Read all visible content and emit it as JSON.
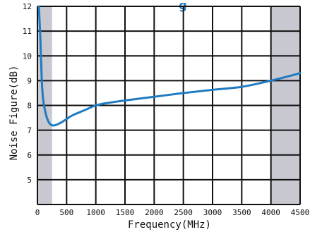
{
  "chart_data": {
    "type": "line",
    "title": "",
    "title_fragment": "g",
    "xlabel": "Frequency(MHz)",
    "ylabel": "Noise Figure(dB)",
    "xlim": [
      0,
      4500
    ],
    "ylim": [
      4,
      12
    ],
    "x_ticks": [
      0,
      500,
      1000,
      1500,
      2000,
      2500,
      3000,
      3500,
      4000,
      4500
    ],
    "y_ticks": [
      5,
      6,
      7,
      8,
      9,
      10,
      11,
      12
    ],
    "grid": true,
    "shaded_regions": [
      {
        "x_from": 0,
        "x_to": 250
      },
      {
        "x_from": 4000,
        "x_to": 4500
      }
    ],
    "series": [
      {
        "color": "#1f7bc1",
        "x": [
          25,
          50,
          75,
          100,
          150,
          200,
          250,
          300,
          400,
          500,
          600,
          800,
          1000,
          1200,
          1500,
          2000,
          2500,
          3000,
          3500,
          4000,
          4500
        ],
        "y": [
          12.0,
          10.7,
          9.0,
          8.2,
          7.6,
          7.3,
          7.2,
          7.2,
          7.3,
          7.45,
          7.6,
          7.8,
          8.0,
          8.1,
          8.2,
          8.35,
          8.5,
          8.63,
          8.75,
          9.0,
          9.3
        ]
      }
    ],
    "colors": {
      "grid": "#111111",
      "shade": "#c8c8d0",
      "title": "#1f7bc1"
    }
  }
}
